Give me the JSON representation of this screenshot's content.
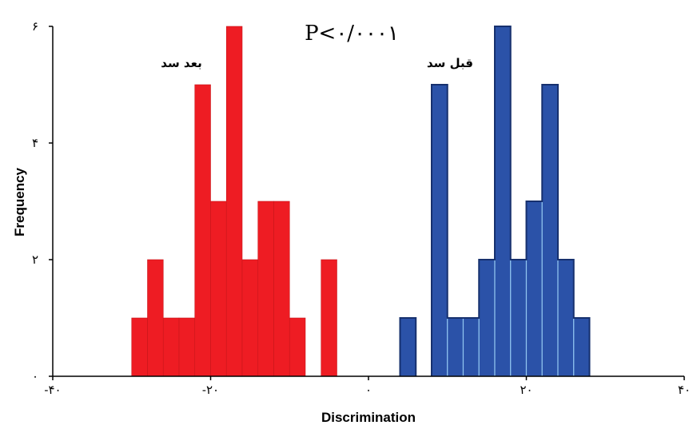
{
  "chart_data": {
    "type": "bar",
    "subtype": "histogram",
    "xlabel": "Discrimination",
    "ylabel": "Frequency",
    "xlim": [
      -40,
      40
    ],
    "ylim": [
      0,
      6
    ],
    "x_ticks": [
      {
        "value": -40,
        "label": "-۴۰"
      },
      {
        "value": -20,
        "label": "-۲۰"
      },
      {
        "value": 0,
        "label": "۰"
      },
      {
        "value": 20,
        "label": "۲۰"
      },
      {
        "value": 40,
        "label": "۴۰"
      }
    ],
    "y_ticks": [
      {
        "value": 0,
        "label": "۰"
      },
      {
        "value": 2,
        "label": "۲"
      },
      {
        "value": 4,
        "label": "۴"
      },
      {
        "value": 6,
        "label": "۶"
      }
    ],
    "grid": false,
    "legend": "none",
    "annotations": {
      "p_value": "P<۰/۰۰۰۱",
      "after_label": "بعد سد",
      "before_label": "قبل سد"
    },
    "series": [
      {
        "name": "بعد سد",
        "color": "#ee1c23",
        "bins": [
          {
            "x0": -30,
            "x1": -28,
            "y": 1
          },
          {
            "x0": -28,
            "x1": -26,
            "y": 2
          },
          {
            "x0": -26,
            "x1": -24,
            "y": 1
          },
          {
            "x0": -24,
            "x1": -22,
            "y": 1
          },
          {
            "x0": -22,
            "x1": -20,
            "y": 5
          },
          {
            "x0": -20,
            "x1": -18,
            "y": 3
          },
          {
            "x0": -18,
            "x1": -16,
            "y": 6
          },
          {
            "x0": -16,
            "x1": -14,
            "y": 2
          },
          {
            "x0": -14,
            "x1": -12,
            "y": 3
          },
          {
            "x0": -12,
            "x1": -10,
            "y": 3
          },
          {
            "x0": -10,
            "x1": -8,
            "y": 1
          },
          {
            "x0": -6,
            "x1": -4,
            "y": 2
          }
        ]
      },
      {
        "name": "قبل سد",
        "color": "#2b52a8",
        "bins": [
          {
            "x0": 4,
            "x1": 6,
            "y": 1
          },
          {
            "x0": 8,
            "x1": 10,
            "y": 5
          },
          {
            "x0": 10,
            "x1": 12,
            "y": 1
          },
          {
            "x0": 12,
            "x1": 14,
            "y": 1
          },
          {
            "x0": 14,
            "x1": 16,
            "y": 2
          },
          {
            "x0": 16,
            "x1": 18,
            "y": 6
          },
          {
            "x0": 18,
            "x1": 20,
            "y": 2
          },
          {
            "x0": 20,
            "x1": 22,
            "y": 3
          },
          {
            "x0": 22,
            "x1": 24,
            "y": 5
          },
          {
            "x0": 24,
            "x1": 26,
            "y": 2
          },
          {
            "x0": 26,
            "x1": 28,
            "y": 1
          }
        ]
      }
    ]
  }
}
